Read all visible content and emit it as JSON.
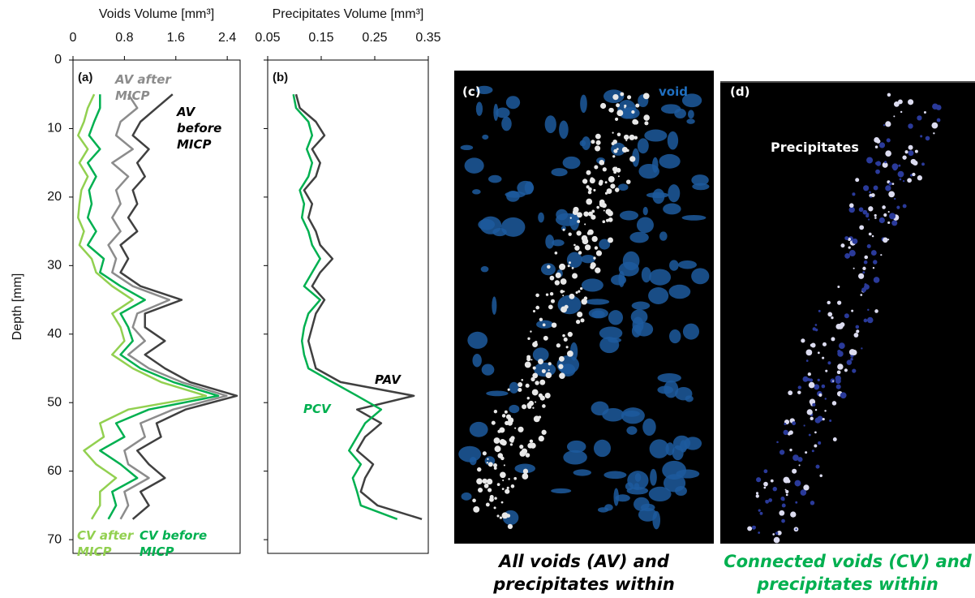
{
  "chart_data": [
    {
      "type": "line",
      "panel": "(a)",
      "xlabel": "Voids Volume [mm³]",
      "ylabel": "Depth [mm]",
      "xlim": [
        0,
        2.6
      ],
      "xticks": [
        0,
        0.8,
        1.6,
        2.4
      ],
      "ylim": [
        0,
        72
      ],
      "yticks": [
        0,
        10,
        20,
        30,
        40,
        50,
        60,
        70
      ],
      "y_inverted": true,
      "depth": [
        5,
        7,
        9,
        11,
        13,
        15,
        17,
        19,
        21,
        23,
        25,
        27,
        29,
        31,
        33,
        35,
        37,
        39,
        41,
        43,
        45,
        47,
        49,
        51,
        53,
        55,
        57,
        59,
        61,
        63,
        65,
        67
      ],
      "series": [
        {
          "name": "AV after MICP",
          "color": "#8c8c8c",
          "values": [
            0.86,
            1.0,
            0.74,
            0.67,
            0.93,
            0.61,
            0.86,
            0.67,
            0.74,
            0.61,
            0.74,
            0.55,
            0.67,
            0.61,
            0.93,
            1.5,
            1.0,
            0.93,
            1.12,
            0.86,
            1.18,
            1.69,
            2.39,
            1.56,
            1.05,
            1.12,
            0.8,
            0.86,
            1.18,
            0.8,
            0.86,
            0.74
          ]
        },
        {
          "name": "AV before MICP",
          "color": "#404040",
          "values": [
            1.55,
            1.3,
            1.05,
            0.93,
            1.18,
            1.0,
            1.12,
            0.93,
            1.0,
            0.86,
            1.0,
            0.74,
            0.86,
            0.74,
            1.05,
            1.69,
            1.12,
            1.12,
            1.43,
            1.12,
            1.43,
            1.82,
            2.55,
            1.75,
            1.3,
            1.37,
            1.0,
            1.18,
            1.43,
            1.05,
            1.18,
            0.93
          ]
        },
        {
          "name": "CV after MICP",
          "color": "#92d050",
          "values": [
            0.33,
            0.23,
            0.17,
            0.08,
            0.23,
            0.1,
            0.23,
            0.13,
            0.1,
            0.08,
            0.17,
            0.1,
            0.29,
            0.36,
            0.61,
            0.93,
            0.61,
            0.74,
            0.8,
            0.61,
            0.93,
            1.37,
            2.07,
            0.86,
            0.42,
            0.48,
            0.17,
            0.36,
            0.67,
            0.42,
            0.42,
            0.29
          ]
        },
        {
          "name": "CV before MICP",
          "color": "#00b050",
          "values": [
            0.42,
            0.42,
            0.33,
            0.25,
            0.42,
            0.23,
            0.36,
            0.25,
            0.29,
            0.23,
            0.36,
            0.23,
            0.48,
            0.42,
            0.74,
            1.12,
            0.74,
            0.86,
            0.93,
            0.74,
            1.05,
            1.56,
            2.26,
            1.18,
            0.67,
            0.8,
            0.42,
            0.74,
            1.0,
            0.61,
            0.67,
            0.55
          ]
        }
      ]
    },
    {
      "type": "line",
      "panel": "(b)",
      "xlabel": "Precipitates Volume [mm³]",
      "xlim": [
        0.05,
        0.35
      ],
      "xticks": [
        0.05,
        0.15,
        0.25,
        0.35
      ],
      "ylim": [
        0,
        72
      ],
      "yticks": [
        0,
        10,
        20,
        30,
        40,
        50,
        60,
        70
      ],
      "y_inverted": true,
      "depth": [
        5,
        7,
        9,
        11,
        13,
        15,
        17,
        19,
        21,
        23,
        25,
        27,
        29,
        31,
        33,
        35,
        37,
        39,
        41,
        43,
        45,
        47,
        49,
        51,
        53,
        55,
        57,
        59,
        61,
        63,
        65,
        67
      ],
      "series": [
        {
          "name": "PAV",
          "color": "#404040",
          "values": [
            0.103,
            0.11,
            0.14,
            0.156,
            0.133,
            0.148,
            0.14,
            0.118,
            0.133,
            0.126,
            0.14,
            0.148,
            0.171,
            0.148,
            0.133,
            0.156,
            0.14,
            0.133,
            0.126,
            0.133,
            0.14,
            0.186,
            0.323,
            0.217,
            0.262,
            0.232,
            0.217,
            0.247,
            0.232,
            0.224,
            0.255,
            0.338
          ]
        },
        {
          "name": "PCV",
          "color": "#00b050",
          "values": [
            0.098,
            0.103,
            0.126,
            0.133,
            0.123,
            0.133,
            0.126,
            0.11,
            0.118,
            0.114,
            0.126,
            0.133,
            0.148,
            0.133,
            0.118,
            0.148,
            0.126,
            0.118,
            0.114,
            0.118,
            0.126,
            0.171,
            0.217,
            0.262,
            0.232,
            0.217,
            0.202,
            0.224,
            0.209,
            0.217,
            0.224,
            0.292
          ]
        }
      ]
    }
  ],
  "images": [
    {
      "panel": "(c)",
      "annotation": "void",
      "caption": "All voids (AV) and precipitates within"
    },
    {
      "panel": "(d)",
      "annotation": "Precipitates",
      "caption": "Connected voids (CV) and precipitates within"
    }
  ]
}
